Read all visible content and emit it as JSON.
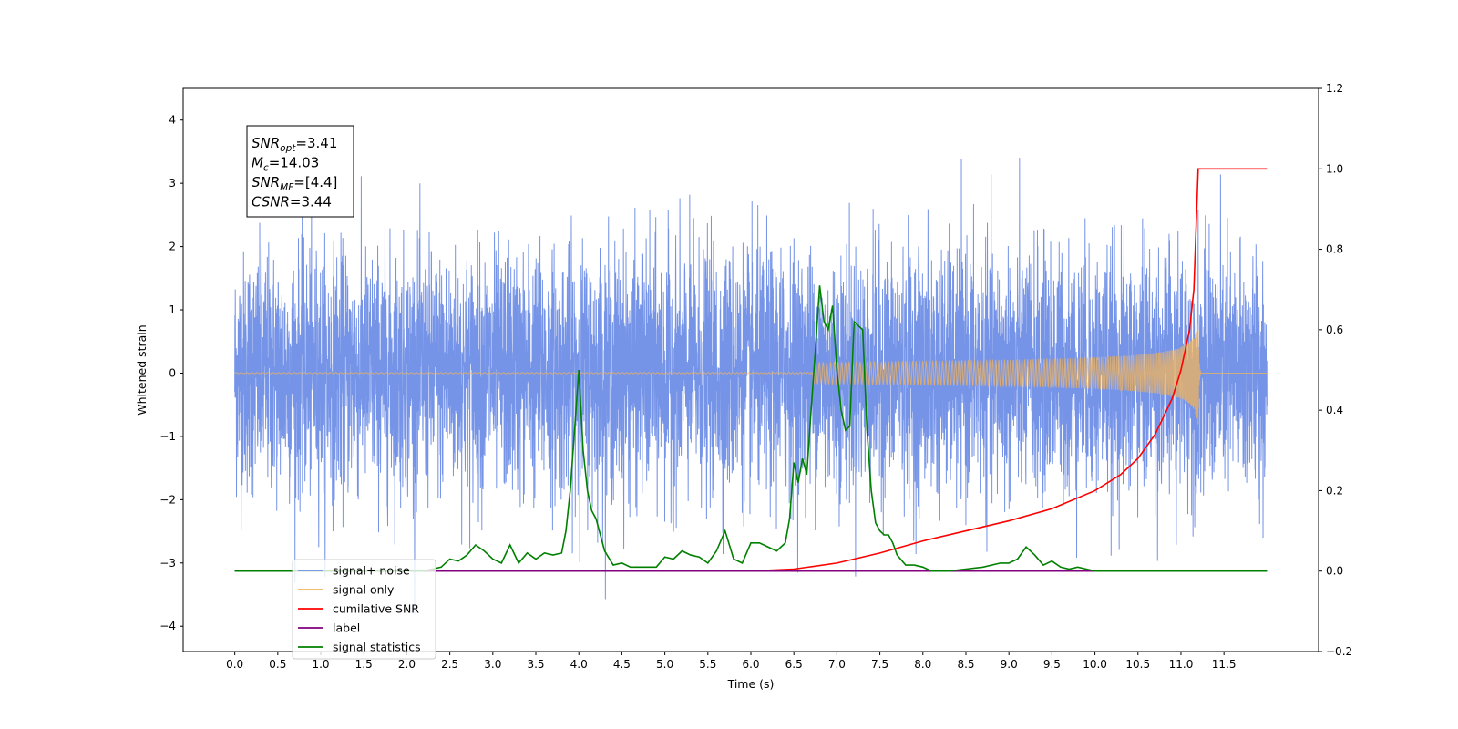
{
  "chart_data": {
    "type": "line",
    "title": "",
    "xlabel": "Time (s)",
    "ylabel": "Whitened strain",
    "y2label": "",
    "xlim": [
      -0.6,
      12.6
    ],
    "ylim": [
      -4.4,
      4.5
    ],
    "y2lim": [
      -0.2,
      1.2
    ],
    "xticks": [
      "0.0",
      "0.5",
      "1.0",
      "1.5",
      "2.0",
      "2.5",
      "3.0",
      "3.5",
      "4.0",
      "4.5",
      "5.0",
      "5.5",
      "6.0",
      "6.5",
      "7.0",
      "7.5",
      "8.0",
      "8.5",
      "9.0",
      "9.5",
      "10.0",
      "10.5",
      "11.0",
      "11.5"
    ],
    "yticks": [
      "−4",
      "−3",
      "−2",
      "−1",
      "0",
      "1",
      "2",
      "3",
      "4"
    ],
    "y2ticks": [
      "−0.2",
      "0.0",
      "0.2",
      "0.4",
      "0.6",
      "0.8",
      "1.0",
      "1.2"
    ],
    "grid": false,
    "legend_position": "lower-left",
    "annotation": {
      "lines": [
        {
          "sym": "SNR",
          "sub": "opt",
          "val": "=3.41"
        },
        {
          "sym": "M",
          "sub": "c",
          "val": "=14.03"
        },
        {
          "sym": "SNR",
          "sub": "MF",
          "val": "=[4.4]"
        },
        {
          "sym": "CSNR",
          "sub": "",
          "val": "=3.44"
        }
      ]
    },
    "series": [
      {
        "name": "signal+ noise",
        "color": "#6f8ee6",
        "axis": "left",
        "style": "noise",
        "x_range": [
          0.0,
          12.0
        ],
        "std": 0.95
      },
      {
        "name": "signal only",
        "color": "#f2b35b",
        "axis": "left",
        "style": "chirp",
        "merger_time": 11.2,
        "peak_amplitude": 0.85
      },
      {
        "name": "cumilative SNR",
        "color": "#ff0000",
        "axis": "right",
        "x": [
          0.0,
          6.0,
          6.5,
          7.0,
          7.5,
          8.0,
          8.5,
          9.0,
          9.5,
          10.0,
          10.3,
          10.5,
          10.7,
          10.9,
          11.0,
          11.1,
          11.15,
          11.2,
          11.25,
          12.0
        ],
        "y": [
          0.0,
          0.0,
          0.005,
          0.02,
          0.045,
          0.075,
          0.1,
          0.125,
          0.155,
          0.2,
          0.24,
          0.28,
          0.34,
          0.43,
          0.5,
          0.6,
          0.7,
          1.0,
          1.0,
          1.0
        ]
      },
      {
        "name": "label",
        "color": "#800080",
        "axis": "right",
        "x": [
          0.0,
          12.0
        ],
        "y": [
          0.0,
          0.0
        ]
      },
      {
        "name": "signal statistics",
        "color": "#008000",
        "axis": "right",
        "x": [
          0.0,
          2.2,
          2.4,
          2.5,
          2.6,
          2.7,
          2.8,
          2.9,
          3.0,
          3.1,
          3.2,
          3.3,
          3.4,
          3.5,
          3.6,
          3.7,
          3.8,
          3.85,
          3.9,
          3.95,
          4.0,
          4.05,
          4.1,
          4.15,
          4.2,
          4.3,
          4.4,
          4.5,
          4.6,
          4.7,
          4.8,
          4.9,
          5.0,
          5.1,
          5.2,
          5.3,
          5.4,
          5.5,
          5.6,
          5.7,
          5.8,
          5.9,
          6.0,
          6.1,
          6.2,
          6.3,
          6.4,
          6.45,
          6.5,
          6.55,
          6.6,
          6.65,
          6.7,
          6.75,
          6.8,
          6.85,
          6.9,
          6.95,
          7.0,
          7.05,
          7.1,
          7.15,
          7.2,
          7.25,
          7.3,
          7.35,
          7.4,
          7.45,
          7.5,
          7.55,
          7.6,
          7.65,
          7.7,
          7.8,
          7.9,
          8.0,
          8.1,
          8.2,
          8.3,
          8.5,
          8.7,
          8.9,
          9.0,
          9.1,
          9.2,
          9.3,
          9.4,
          9.5,
          9.6,
          9.7,
          9.8,
          9.9,
          10.0,
          10.1,
          10.2,
          10.5,
          11.0,
          11.5,
          11.6,
          12.0
        ],
        "y": [
          0.0,
          0.0,
          0.01,
          0.03,
          0.025,
          0.04,
          0.065,
          0.05,
          0.03,
          0.02,
          0.065,
          0.02,
          0.045,
          0.03,
          0.045,
          0.04,
          0.045,
          0.1,
          0.2,
          0.35,
          0.5,
          0.3,
          0.2,
          0.15,
          0.13,
          0.05,
          0.015,
          0.02,
          0.01,
          0.01,
          0.01,
          0.01,
          0.035,
          0.03,
          0.05,
          0.04,
          0.035,
          0.02,
          0.05,
          0.1,
          0.03,
          0.02,
          0.07,
          0.07,
          0.06,
          0.05,
          0.07,
          0.13,
          0.27,
          0.22,
          0.28,
          0.24,
          0.4,
          0.55,
          0.71,
          0.62,
          0.6,
          0.66,
          0.5,
          0.4,
          0.35,
          0.36,
          0.62,
          0.61,
          0.6,
          0.35,
          0.2,
          0.12,
          0.1,
          0.09,
          0.09,
          0.07,
          0.04,
          0.015,
          0.015,
          0.01,
          0.0,
          0.0,
          0.0,
          0.005,
          0.01,
          0.02,
          0.02,
          0.03,
          0.06,
          0.04,
          0.015,
          0.025,
          0.01,
          0.005,
          0.01,
          0.005,
          0.0,
          0.0,
          0.0,
          0.0,
          0.0,
          0.0,
          0.0,
          0.0
        ]
      }
    ]
  }
}
